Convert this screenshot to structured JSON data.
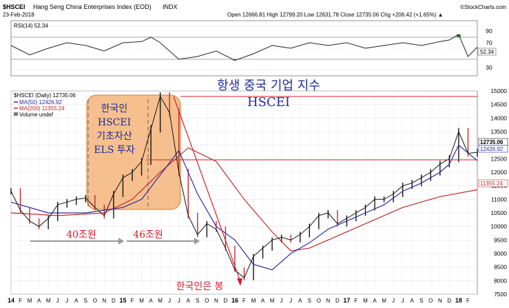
{
  "header": {
    "symbol": "$HSCEI",
    "name": "Hang Seng China Enterprises Index (EOD)",
    "exchange": "INDX",
    "date": "23-Feb-2018",
    "ohlc": "Open 12666.81  High 12799.20  Low 12631.78  Close 12735.06  Chg +206.42 (+1.65%) ▲",
    "credit": "©StockCharts.com"
  },
  "rsi": {
    "label": "RSI(14) 52.34",
    "value_tag": "52.34",
    "levels": [
      "90",
      "70",
      "50",
      "30",
      "10"
    ]
  },
  "legend": {
    "line1": "$HSCEI (Daily) 12735.06",
    "ma50": "MA(50) 12426.92",
    "ma200": "MA(200) 11355.24",
    "volume": "Volume undef"
  },
  "price_tags": {
    "close": "12735.06",
    "ma50": "12426.92",
    "ma200": "11355.24"
  },
  "annotations": {
    "title_kr": "항생 중국 기업 지수",
    "title_en": "HSCEI",
    "box_lines": [
      "한국인",
      "HSCEI",
      "기초자산",
      "ELS 투자"
    ],
    "label_40": "40조원",
    "label_46": "46조원",
    "bottom": "한국인은 봉"
  },
  "chart_data": {
    "type": "line",
    "title": "$HSCEI Hang Seng China Enterprises Index (EOD) INDX",
    "ylim": [
      7500,
      15000
    ],
    "y_ticks": [
      "7500",
      "8000",
      "8500",
      "9000",
      "9500",
      "10000",
      "10500",
      "11000",
      "11500",
      "12000",
      "12500",
      "13000",
      "13500",
      "14000",
      "14500",
      "15000"
    ],
    "x_ticks": [
      "14",
      "F",
      "M",
      "A",
      "M",
      "J",
      "J",
      "A",
      "S",
      "O",
      "N",
      "D",
      "15",
      "F",
      "M",
      "A",
      "M",
      "J",
      "J",
      "A",
      "S",
      "O",
      "N",
      "D",
      "16",
      "F",
      "M",
      "A",
      "M",
      "J",
      "J",
      "A",
      "S",
      "O",
      "N",
      "D",
      "17",
      "F",
      "M",
      "A",
      "M",
      "J",
      "J",
      "A",
      "S",
      "O",
      "N",
      "D",
      "18",
      "F"
    ],
    "x_range": [
      0,
      50
    ],
    "series": [
      {
        "name": "$HSCEI",
        "x": [
          0,
          1,
          2,
          3,
          4,
          5,
          6,
          7,
          8,
          9,
          10,
          11,
          12,
          13,
          14,
          15,
          16,
          17,
          18,
          19,
          20,
          21,
          22,
          23,
          24,
          25,
          26,
          27,
          28,
          29,
          30,
          31,
          32,
          33,
          34,
          35,
          36,
          37,
          38,
          39,
          40,
          41,
          42,
          43,
          44,
          45,
          46,
          47,
          48,
          49,
          50
        ],
        "values": [
          11300,
          10600,
          10200,
          10000,
          10300,
          10800,
          10900,
          11000,
          11050,
          10700,
          10400,
          11200,
          11800,
          12000,
          12400,
          13600,
          14800,
          14200,
          12000,
          10400,
          9700,
          10100,
          9900,
          9200,
          8400,
          8100,
          8900,
          9200,
          9500,
          9600,
          9500,
          9700,
          10000,
          10400,
          10500,
          10100,
          10300,
          10500,
          10700,
          11000,
          11000,
          11200,
          11500,
          11600,
          11800,
          12000,
          12300,
          12500,
          13500,
          12700,
          12735
        ]
      },
      {
        "name": "MA(50)",
        "x": [
          0,
          4,
          8,
          12,
          14,
          16,
          18,
          20,
          22,
          24,
          26,
          28,
          30,
          32,
          34,
          36,
          38,
          40,
          42,
          44,
          46,
          47,
          48,
          50
        ],
        "values": [
          10900,
          10500,
          10500,
          10700,
          11000,
          11900,
          12800,
          11200,
          10000,
          9500,
          8600,
          8400,
          9000,
          9400,
          9900,
          10200,
          10500,
          10800,
          11300,
          11600,
          12000,
          12300,
          13000,
          12427
        ]
      },
      {
        "name": "MA(200)",
        "x": [
          0,
          5,
          10,
          13,
          16,
          19,
          22,
          25,
          28,
          30,
          32,
          34,
          38,
          42,
          46,
          50
        ],
        "values": [
          10500,
          10400,
          10500,
          11000,
          12000,
          12900,
          12400,
          11000,
          9800,
          9100,
          9200,
          9500,
          10100,
          10700,
          11100,
          11355
        ]
      },
      {
        "name": "RSI(14)",
        "x": [
          0,
          2,
          4,
          6,
          8,
          10,
          12,
          14,
          15,
          16,
          17,
          18,
          20,
          22,
          24,
          26,
          28,
          30,
          32,
          34,
          36,
          38,
          40,
          42,
          44,
          46,
          47,
          48,
          49,
          50
        ],
        "values": [
          55,
          38,
          50,
          60,
          55,
          45,
          60,
          62,
          70,
          60,
          45,
          30,
          35,
          45,
          28,
          40,
          55,
          50,
          60,
          55,
          60,
          50,
          55,
          60,
          55,
          62,
          65,
          75,
          35,
          52
        ]
      }
    ]
  }
}
